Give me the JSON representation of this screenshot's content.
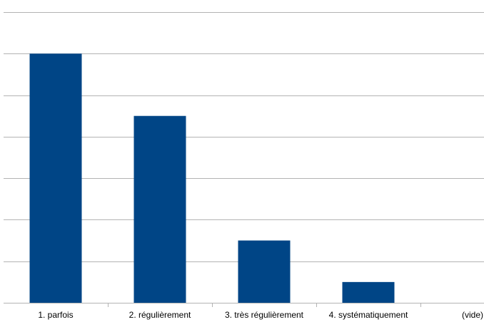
{
  "chart_data": {
    "type": "bar",
    "categories": [
      "1. parfois",
      "2. régulièrement",
      "3. très régulièrement",
      "4. systématiquement",
      "(vide)"
    ],
    "values": [
      6,
      4.5,
      1.5,
      0.5,
      0
    ],
    "ylim": [
      0,
      7
    ],
    "ytick_step": 1,
    "grid": true,
    "bar_color": "#004586",
    "grid_color": "#b3b3b3"
  }
}
